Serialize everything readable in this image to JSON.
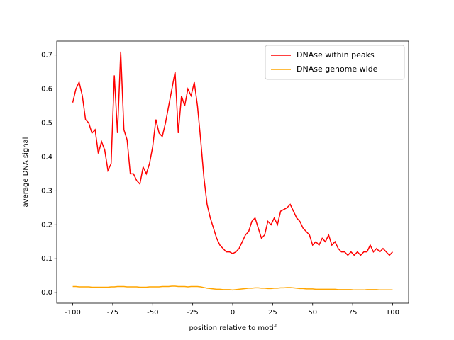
{
  "chart_data": {
    "type": "line",
    "xlabel": "position relative to motif",
    "ylabel": "average DNA signal",
    "x": [
      -100,
      -98,
      -96,
      -94,
      -92,
      -90,
      -88,
      -86,
      -84,
      -82,
      -80,
      -78,
      -76,
      -74,
      -72,
      -70,
      -68,
      -66,
      -64,
      -62,
      -60,
      -58,
      -56,
      -54,
      -52,
      -50,
      -48,
      -46,
      -44,
      -42,
      -40,
      -38,
      -36,
      -34,
      -32,
      -30,
      -28,
      -26,
      -24,
      -22,
      -20,
      -18,
      -16,
      -14,
      -12,
      -10,
      -8,
      -6,
      -4,
      -2,
      0,
      2,
      4,
      6,
      8,
      10,
      12,
      14,
      16,
      18,
      20,
      22,
      24,
      26,
      28,
      30,
      32,
      34,
      36,
      38,
      40,
      42,
      44,
      46,
      48,
      50,
      52,
      54,
      56,
      58,
      60,
      62,
      64,
      66,
      68,
      70,
      72,
      74,
      76,
      78,
      80,
      82,
      84,
      86,
      88,
      90,
      92,
      94,
      96,
      98,
      100
    ],
    "series": [
      {
        "name": "DNAse within peaks",
        "color": "#ff0000",
        "values": [
          0.56,
          0.6,
          0.62,
          0.58,
          0.51,
          0.5,
          0.47,
          0.48,
          0.41,
          0.445,
          0.42,
          0.36,
          0.38,
          0.64,
          0.47,
          0.71,
          0.48,
          0.45,
          0.35,
          0.35,
          0.33,
          0.32,
          0.37,
          0.35,
          0.38,
          0.43,
          0.51,
          0.47,
          0.46,
          0.5,
          0.55,
          0.6,
          0.65,
          0.47,
          0.58,
          0.55,
          0.6,
          0.58,
          0.62,
          0.55,
          0.45,
          0.34,
          0.26,
          0.22,
          0.19,
          0.16,
          0.14,
          0.13,
          0.12,
          0.12,
          0.115,
          0.12,
          0.13,
          0.15,
          0.17,
          0.18,
          0.21,
          0.22,
          0.19,
          0.16,
          0.17,
          0.21,
          0.2,
          0.22,
          0.2,
          0.24,
          0.245,
          0.25,
          0.26,
          0.24,
          0.22,
          0.21,
          0.19,
          0.18,
          0.17,
          0.14,
          0.15,
          0.14,
          0.16,
          0.15,
          0.17,
          0.14,
          0.15,
          0.13,
          0.12,
          0.12,
          0.11,
          0.12,
          0.11,
          0.12,
          0.11,
          0.12,
          0.12,
          0.14,
          0.12,
          0.13,
          0.12,
          0.13,
          0.12,
          0.11,
          0.12
        ]
      },
      {
        "name": "DNAse genome wide",
        "color": "#ffa500",
        "values": [
          0.018,
          0.018,
          0.017,
          0.017,
          0.017,
          0.017,
          0.016,
          0.016,
          0.016,
          0.016,
          0.016,
          0.016,
          0.017,
          0.017,
          0.018,
          0.018,
          0.018,
          0.017,
          0.017,
          0.017,
          0.017,
          0.016,
          0.016,
          0.016,
          0.017,
          0.017,
          0.017,
          0.017,
          0.018,
          0.018,
          0.018,
          0.019,
          0.019,
          0.018,
          0.018,
          0.018,
          0.017,
          0.018,
          0.018,
          0.018,
          0.017,
          0.015,
          0.013,
          0.012,
          0.011,
          0.01,
          0.01,
          0.009,
          0.009,
          0.009,
          0.008,
          0.009,
          0.01,
          0.011,
          0.012,
          0.013,
          0.013,
          0.014,
          0.014,
          0.013,
          0.013,
          0.012,
          0.012,
          0.013,
          0.013,
          0.014,
          0.014,
          0.015,
          0.015,
          0.014,
          0.013,
          0.012,
          0.012,
          0.011,
          0.011,
          0.011,
          0.01,
          0.01,
          0.01,
          0.01,
          0.01,
          0.01,
          0.01,
          0.009,
          0.009,
          0.009,
          0.009,
          0.009,
          0.008,
          0.008,
          0.008,
          0.008,
          0.009,
          0.009,
          0.009,
          0.009,
          0.008,
          0.008,
          0.008,
          0.008,
          0.008
        ]
      }
    ],
    "xlim": [
      -110,
      110
    ],
    "xticks": [
      -100,
      -75,
      -50,
      -25,
      0,
      25,
      50,
      75,
      100
    ],
    "ylim": [
      -0.031,
      0.741
    ],
    "yticks": [
      {
        "value": 0,
        "label": "0.0"
      },
      0.1,
      0.2,
      0.3,
      0.4,
      0.5,
      0.6,
      0.7
    ],
    "legend": "upper right"
  }
}
